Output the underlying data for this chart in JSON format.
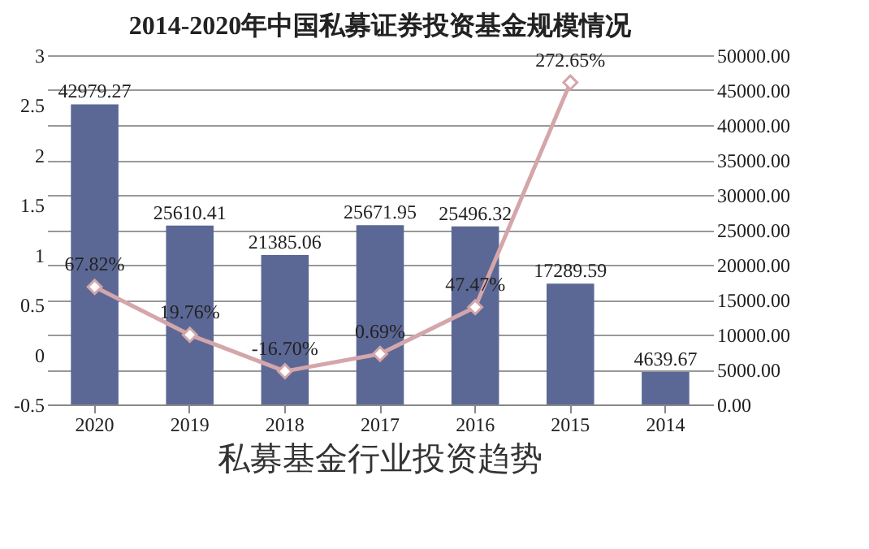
{
  "chart_data": {
    "type": "bar",
    "title": "2014-2020年中国私募证券投资基金规模情况",
    "categories": [
      "2020",
      "2019",
      "2018",
      "2017",
      "2016",
      "2015",
      "2014"
    ],
    "series": [
      {
        "axis": "y2",
        "color": "#5b6896",
        "values": [
          42979.27,
          25610.41,
          21385.06,
          25671.95,
          25496.32,
          17289.59,
          4639.67
        ],
        "value_labels": [
          "42979.27",
          "25610.41",
          "21385.06",
          "25671.95",
          "25496.32",
          "17289.59",
          "4639.67"
        ]
      },
      {
        "type": "line",
        "axis": "y",
        "color": "#d4a6aa",
        "marker": "diamond",
        "values": [
          0.6782,
          0.1976,
          -0.167,
          0.0069,
          0.4747,
          2.7265,
          null
        ],
        "value_labels": [
          "67.82%",
          "19.76%",
          "-16.70%",
          "0.69%",
          "47.47%",
          "272.65%",
          null
        ]
      }
    ],
    "ylim": [
      -0.5,
      3
    ],
    "yticks": [
      -0.5,
      0,
      0.5,
      1,
      1.5,
      2,
      2.5,
      3
    ],
    "y2lim": [
      0,
      50000
    ],
    "y2ticks": [
      {
        "value": 0,
        "label": "0.00"
      },
      {
        "value": 5000,
        "label": "5000.00"
      },
      {
        "value": 10000,
        "label": "10000.00"
      },
      {
        "value": 15000,
        "label": "15000.00"
      },
      {
        "value": 20000,
        "label": "20000.00"
      },
      {
        "value": 25000,
        "label": "25000.00"
      },
      {
        "value": 30000,
        "label": "30000.00"
      },
      {
        "value": 35000,
        "label": "35000.00"
      },
      {
        "value": 40000,
        "label": "40000.00"
      },
      {
        "value": 45000,
        "label": "45000.00"
      },
      {
        "value": 50000,
        "label": "50000.00"
      }
    ],
    "grid": "y",
    "annotations": [
      "私募基金行业投资趋势"
    ]
  }
}
